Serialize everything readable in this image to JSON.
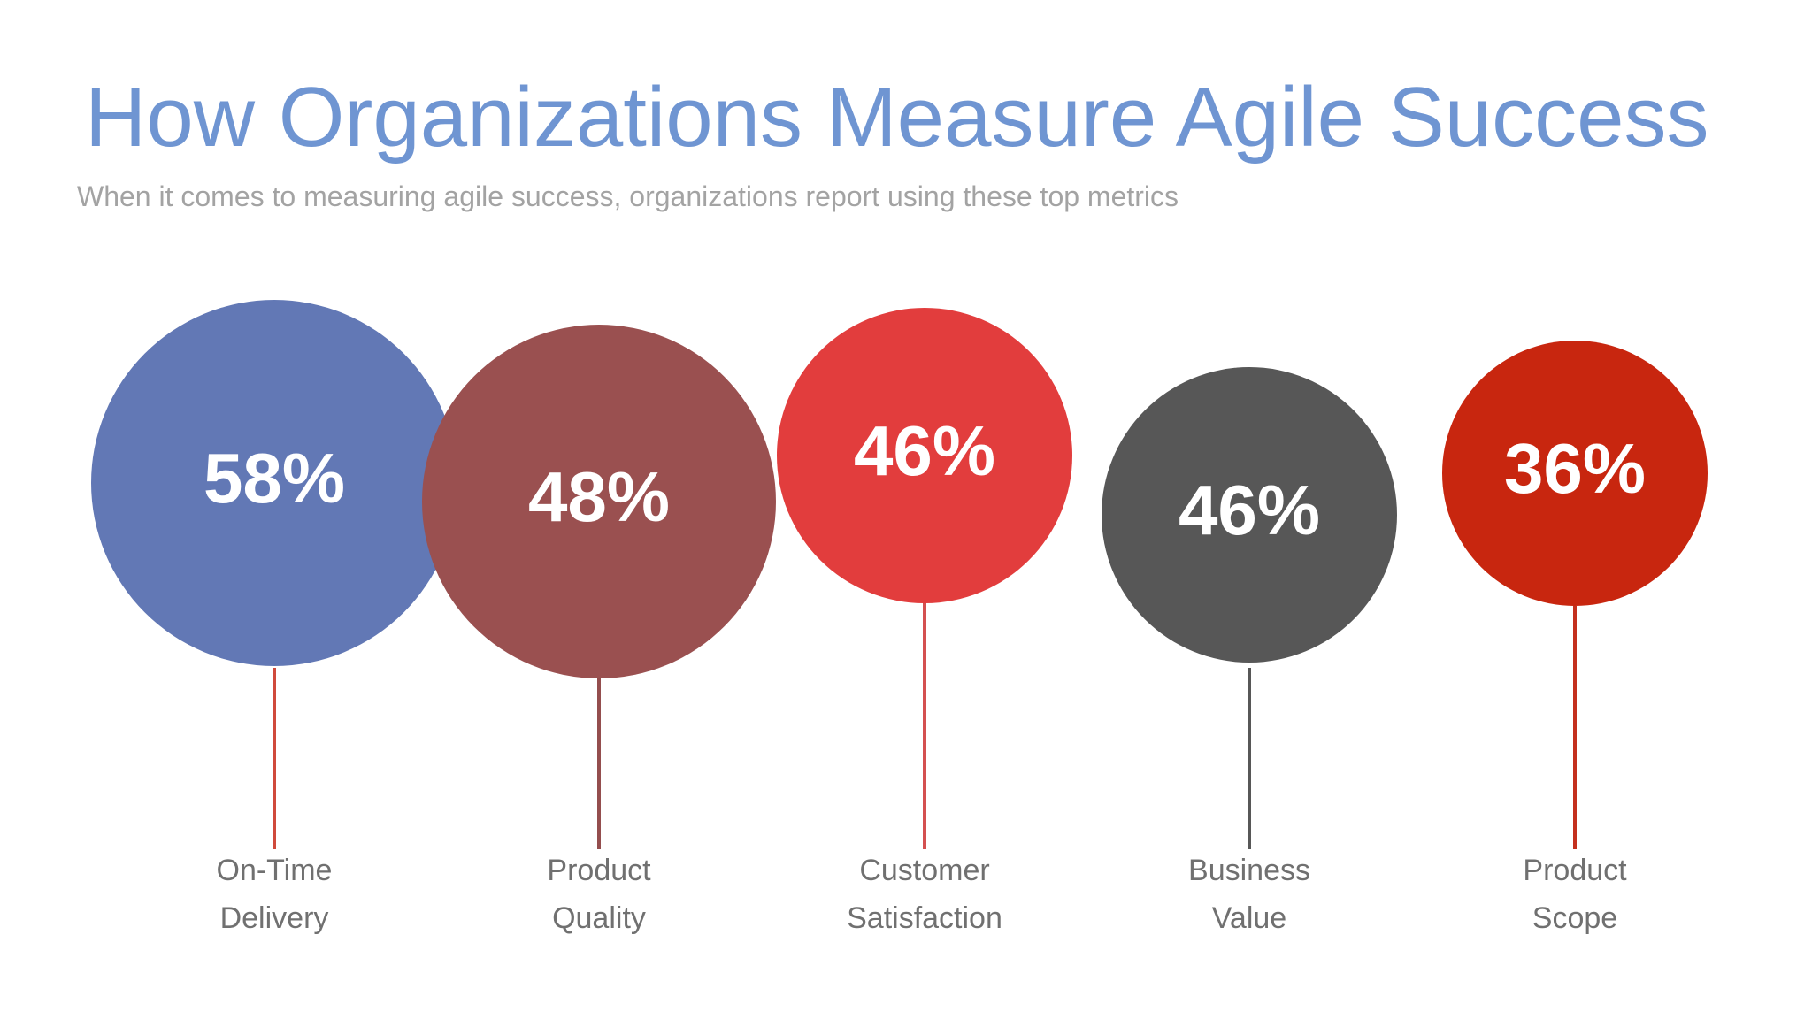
{
  "slide": {
    "title": "How Organizations Measure Agile Success",
    "subtitle": "When it comes to measuring agile success, organizations report using these top metrics"
  },
  "chart_data": {
    "type": "bubble",
    "title": "How Organizations Measure Agile Success",
    "subtitle": "When it comes to measuring agile success, organizations report using these top metrics",
    "unit": "%",
    "items": [
      {
        "category_lines": [
          "On-Time",
          "Delivery"
        ],
        "value": 58,
        "label": "58%",
        "color": "#6278b5",
        "line_color": "#d04a3c"
      },
      {
        "category_lines": [
          "Product",
          "Quality"
        ],
        "value": 48,
        "label": "48%",
        "color": "#9a5050",
        "line_color": "#944e4e"
      },
      {
        "category_lines": [
          "Customer",
          "Satisfaction"
        ],
        "value": 46,
        "label": "46%",
        "color": "#e23d3d",
        "line_color": "#d45050"
      },
      {
        "category_lines": [
          "Business",
          "Value"
        ],
        "value": 46,
        "label": "46%",
        "color": "#575757",
        "line_color": "#575757"
      },
      {
        "category_lines": [
          "Product",
          "Scope"
        ],
        "value": 36,
        "label": "36%",
        "color": "#c8260f",
        "line_color": "#c4301e"
      }
    ]
  }
}
